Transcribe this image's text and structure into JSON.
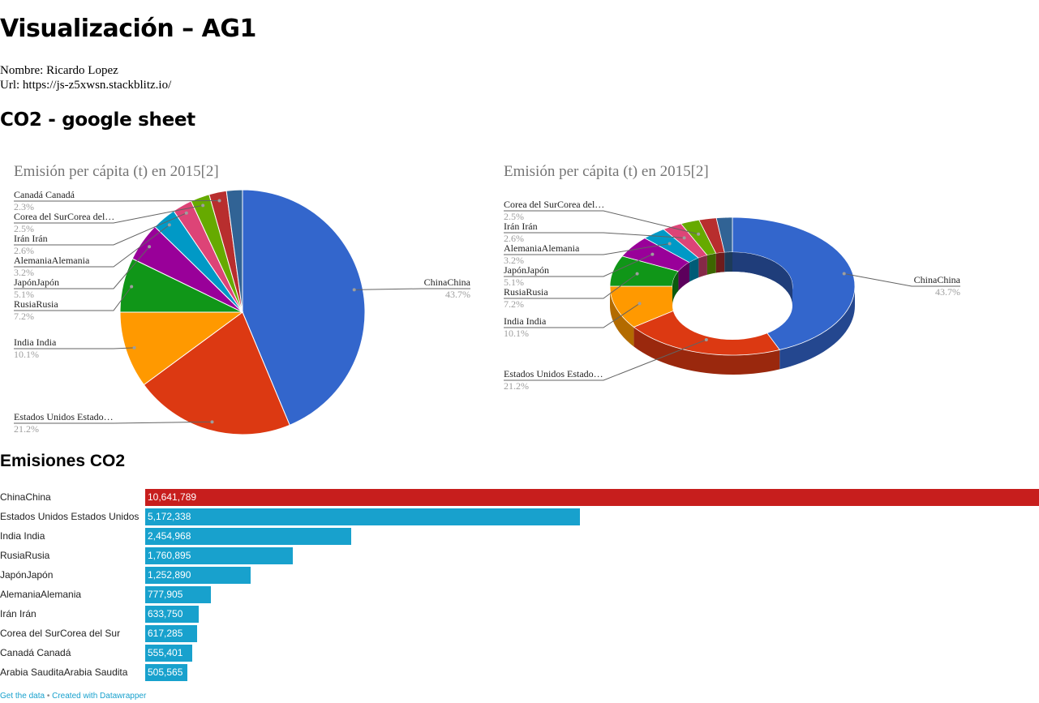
{
  "page": {
    "title": "Visualización – AG1",
    "author_line": "Nombre: Ricardo Lopez",
    "url_line": "Url: https://js-z5xwsn.stackblitz.io/",
    "section_title": "CO2 - google sheet",
    "bar_section_title": "Emisiones CO2",
    "footer_data_link": "Get the data",
    "footer_separator": "•",
    "footer_credit": "Created with Datawrapper"
  },
  "chart_data": [
    {
      "type": "pie",
      "title": "Emisión per cápita (t) en 2015[2]",
      "legend": "labeled",
      "slices": [
        {
          "label": "ChinaChina",
          "value": 43.7,
          "pct": "43.7%",
          "color": "#3366cc"
        },
        {
          "label": "Estados Unidos Estado…",
          "value": 21.2,
          "pct": "21.2%",
          "color": "#dc3912"
        },
        {
          "label": "India India",
          "value": 10.1,
          "pct": "10.1%",
          "color": "#ff9900"
        },
        {
          "label": "RusiaRusia",
          "value": 7.2,
          "pct": "7.2%",
          "color": "#109618"
        },
        {
          "label": "JapónJapón",
          "value": 5.1,
          "pct": "5.1%",
          "color": "#990099"
        },
        {
          "label": "AlemaniaAlemania",
          "value": 3.2,
          "pct": "3.2%",
          "color": "#0099c6"
        },
        {
          "label": "Irán Irán",
          "value": 2.6,
          "pct": "2.6%",
          "color": "#dd4477"
        },
        {
          "label": "Corea del SurCorea del…",
          "value": 2.5,
          "pct": "2.5%",
          "color": "#66aa00"
        },
        {
          "label": "Canadá Canadá",
          "value": 2.3,
          "pct": "2.3%",
          "color": "#b82e2e"
        },
        {
          "label": "",
          "value": 2.1,
          "pct": "",
          "color": "#316395"
        }
      ]
    },
    {
      "type": "pie",
      "variant": "donut-3d",
      "title": "Emisión per cápita (t) en 2015[2]",
      "legend": "labeled",
      "slices": [
        {
          "label": "ChinaChina",
          "value": 43.7,
          "pct": "43.7%",
          "color": "#3366cc"
        },
        {
          "label": "Estados Unidos Estado…",
          "value": 21.2,
          "pct": "21.2%",
          "color": "#dc3912"
        },
        {
          "label": "India India",
          "value": 10.1,
          "pct": "10.1%",
          "color": "#ff9900"
        },
        {
          "label": "RusiaRusia",
          "value": 7.2,
          "pct": "7.2%",
          "color": "#109618"
        },
        {
          "label": "JapónJapón",
          "value": 5.1,
          "pct": "5.1%",
          "color": "#990099"
        },
        {
          "label": "AlemaniaAlemania",
          "value": 3.2,
          "pct": "3.2%",
          "color": "#0099c6"
        },
        {
          "label": "Irán Irán",
          "value": 2.6,
          "pct": "2.6%",
          "color": "#dd4477"
        },
        {
          "label": "Corea del SurCorea del…",
          "value": 2.5,
          "pct": "2.5%",
          "color": "#66aa00"
        },
        {
          "label": "",
          "value": 2.3,
          "pct": "",
          "color": "#b82e2e"
        },
        {
          "label": "",
          "value": 2.1,
          "pct": "",
          "color": "#316395"
        }
      ]
    },
    {
      "type": "bar",
      "orientation": "horizontal",
      "title": "Emisiones CO2",
      "categories": [
        "ChinaChina",
        "Estados Unidos Estados Unidos",
        "India India",
        "RusiaRusia",
        "JapónJapón",
        "AlemaniaAlemania",
        "Irán Irán",
        "Corea del SurCorea del Sur",
        "Canadá Canadá",
        "Arabia SauditaArabia Saudita"
      ],
      "values": [
        10641789,
        5172338,
        2454968,
        1760895,
        1252890,
        777905,
        633750,
        617285,
        555401,
        505565
      ],
      "value_labels": [
        "10,641,789",
        "5,172,338",
        "2,454,968",
        "1,760,895",
        "1,252,890",
        "777,905",
        "633,750",
        "617,285",
        "555,401",
        "505,565"
      ],
      "highlight_color": "#c71e1d",
      "bar_color": "#18a1cd"
    }
  ]
}
